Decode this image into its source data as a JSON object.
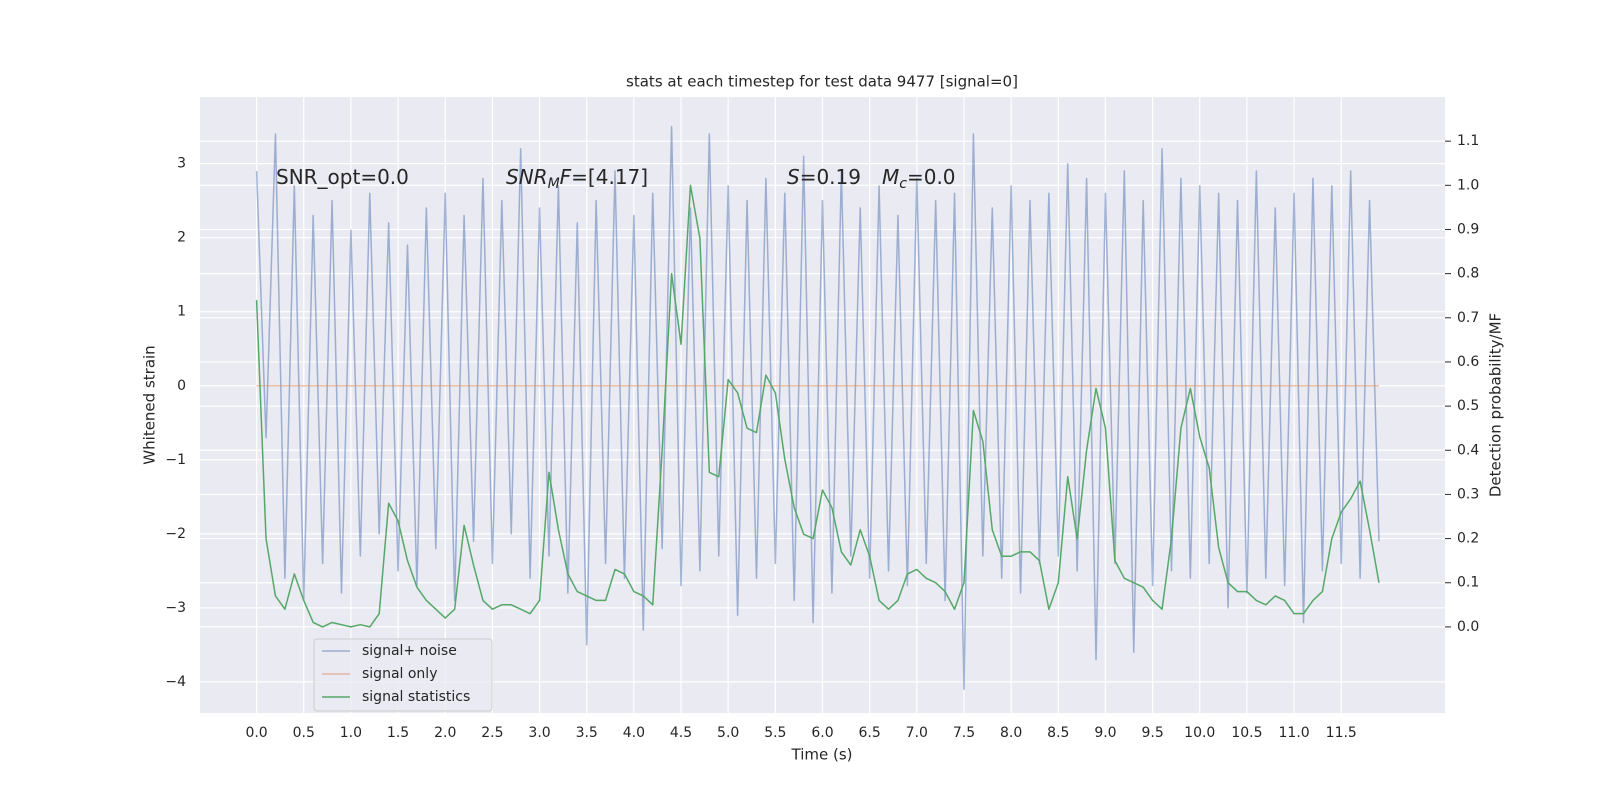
{
  "chart_data": {
    "type": "line",
    "title": "stats at each timestep for test data 9477 [signal=0]",
    "xlabel": "Time (s)",
    "ylabel": "Whitened strain",
    "y2label": "Detection probability/MF",
    "annotations": [
      [
        {
          "text": "SNR_opt=0.0"
        }
      ],
      [
        {
          "text": "SNR",
          "style": "italic"
        },
        {
          "text": "M",
          "style": "sub"
        },
        {
          "text": "F",
          "style": "italic"
        },
        {
          "text": "=[4.17]"
        }
      ],
      [
        {
          "text": "S",
          "style": "italic"
        },
        {
          "text": "=0.19"
        }
      ],
      [
        {
          "text": "M",
          "style": "italic"
        },
        {
          "text": "c",
          "style": "sub"
        },
        {
          "text": "=0.0"
        }
      ]
    ],
    "x": [
      0,
      0.1,
      0.2,
      0.3,
      0.4,
      0.5,
      0.6,
      0.7,
      0.8,
      0.9,
      1,
      1.1,
      1.2,
      1.3,
      1.4,
      1.5,
      1.6,
      1.7,
      1.8,
      1.9,
      2,
      2.1,
      2.2,
      2.3,
      2.4,
      2.5,
      2.6,
      2.7,
      2.8,
      2.9,
      3,
      3.1,
      3.2,
      3.3,
      3.4,
      3.5,
      3.6,
      3.7,
      3.8,
      3.9,
      4,
      4.1,
      4.2,
      4.3,
      4.4,
      4.5,
      4.6,
      4.7,
      4.8,
      4.9,
      5,
      5.1,
      5.2,
      5.3,
      5.4,
      5.5,
      5.6,
      5.7,
      5.8,
      5.9,
      6,
      6.1,
      6.2,
      6.3,
      6.4,
      6.5,
      6.6,
      6.7,
      6.8,
      6.9,
      7,
      7.1,
      7.2,
      7.3,
      7.4,
      7.5,
      7.6,
      7.7,
      7.8,
      7.9,
      8,
      8.1,
      8.2,
      8.3,
      8.4,
      8.5,
      8.6,
      8.7,
      8.8,
      8.9,
      9,
      9.1,
      9.2,
      9.3,
      9.4,
      9.5,
      9.6,
      9.7,
      9.8,
      9.9,
      10,
      10.1,
      10.2,
      10.3,
      10.4,
      10.5,
      10.6,
      10.7,
      10.8,
      10.9,
      11,
      11.1,
      11.2,
      11.3,
      11.4,
      11.5,
      11.6,
      11.7,
      11.8,
      11.9
    ],
    "series": [
      {
        "name": "signal+ noise",
        "color": "#4c72b0",
        "opacity": 0.5,
        "values": [
          2.9,
          -0.7,
          3.4,
          -2.6,
          2.7,
          -2.9,
          2.3,
          -2.4,
          2.5,
          -2.8,
          2.1,
          -2.3,
          2.6,
          -2.0,
          2.2,
          -2.5,
          1.9,
          -2.7,
          2.4,
          -2.2,
          2.6,
          -2.9,
          2.3,
          -2.1,
          2.8,
          -2.4,
          2.5,
          -2.0,
          3.2,
          -2.6,
          2.4,
          -2.3,
          2.7,
          -2.8,
          2.2,
          -3.5,
          2.5,
          -2.4,
          2.9,
          -2.6,
          2.3,
          -3.3,
          2.6,
          -2.2,
          3.5,
          -2.7,
          2.4,
          -2.5,
          3.4,
          -2.3,
          2.7,
          -3.1,
          2.5,
          -2.6,
          2.8,
          -2.4,
          2.6,
          -2.9,
          3.1,
          -3.2,
          2.5,
          -2.8,
          2.9,
          -2.3,
          2.4,
          -2.6,
          2.7,
          -2.5,
          2.3,
          -2.7,
          2.8,
          -2.4,
          2.5,
          -2.9,
          2.6,
          -4.1,
          3.4,
          -2.3,
          2.4,
          -2.6,
          2.7,
          -2.8,
          2.5,
          -2.4,
          2.6,
          -2.3,
          3.0,
          -2.5,
          2.8,
          -3.7,
          2.6,
          -2.4,
          2.9,
          -3.6,
          2.5,
          -2.7,
          3.2,
          -2.5,
          2.8,
          -2.6,
          2.7,
          -2.4,
          2.6,
          -3.0,
          2.5,
          -2.8,
          2.9,
          -2.6,
          2.4,
          -2.7,
          2.6,
          -3.2,
          2.8,
          -2.5,
          2.7,
          -2.4,
          2.9,
          -2.6,
          2.5,
          -2.1
        ]
      },
      {
        "name": "signal only",
        "color": "#dd8452",
        "opacity": 0.5,
        "values": [
          0,
          0,
          0,
          0,
          0,
          0,
          0,
          0,
          0,
          0,
          0,
          0,
          0,
          0,
          0,
          0,
          0,
          0,
          0,
          0,
          0,
          0,
          0,
          0,
          0,
          0,
          0,
          0,
          0,
          0,
          0,
          0,
          0,
          0,
          0,
          0,
          0,
          0,
          0,
          0,
          0,
          0,
          0,
          0,
          0,
          0,
          0,
          0,
          0,
          0,
          0,
          0,
          0,
          0,
          0,
          0,
          0,
          0,
          0,
          0,
          0,
          0,
          0,
          0,
          0,
          0,
          0,
          0,
          0,
          0,
          0,
          0,
          0,
          0,
          0,
          0,
          0,
          0,
          0,
          0,
          0,
          0,
          0,
          0,
          0,
          0,
          0,
          0,
          0,
          0,
          0,
          0,
          0,
          0,
          0,
          0,
          0,
          0,
          0,
          0,
          0,
          0,
          0,
          0,
          0,
          0,
          0,
          0,
          0,
          0,
          0,
          0,
          0,
          0,
          0,
          0,
          0,
          0,
          0,
          0
        ]
      },
      {
        "name": "signal statistics",
        "color": "#55a868",
        "opacity": 1,
        "axis": "y2",
        "values": [
          0.74,
          0.2,
          0.07,
          0.04,
          0.12,
          0.06,
          0.01,
          0.0,
          0.01,
          0.005,
          0.0,
          0.005,
          0.0,
          0.03,
          0.28,
          0.24,
          0.15,
          0.09,
          0.06,
          0.04,
          0.02,
          0.04,
          0.23,
          0.14,
          0.06,
          0.04,
          0.05,
          0.05,
          0.04,
          0.03,
          0.06,
          0.35,
          0.22,
          0.12,
          0.08,
          0.07,
          0.06,
          0.06,
          0.13,
          0.12,
          0.08,
          0.07,
          0.05,
          0.4,
          0.8,
          0.64,
          1.0,
          0.88,
          0.35,
          0.34,
          0.56,
          0.53,
          0.45,
          0.44,
          0.57,
          0.53,
          0.38,
          0.27,
          0.21,
          0.2,
          0.31,
          0.27,
          0.17,
          0.14,
          0.22,
          0.16,
          0.06,
          0.04,
          0.06,
          0.12,
          0.13,
          0.11,
          0.1,
          0.08,
          0.04,
          0.1,
          0.49,
          0.42,
          0.22,
          0.16,
          0.16,
          0.17,
          0.17,
          0.15,
          0.04,
          0.1,
          0.34,
          0.2,
          0.4,
          0.54,
          0.45,
          0.15,
          0.11,
          0.1,
          0.09,
          0.06,
          0.04,
          0.2,
          0.45,
          0.54,
          0.43,
          0.36,
          0.18,
          0.1,
          0.08,
          0.08,
          0.06,
          0.05,
          0.07,
          0.06,
          0.03,
          0.03,
          0.06,
          0.08,
          0.2,
          0.26,
          0.29,
          0.33,
          0.22,
          0.1
        ]
      }
    ],
    "xlim": [
      -0.6,
      12.6
    ],
    "xticks": [
      {
        "value": 0,
        "label": "0.0"
      },
      0.5,
      {
        "value": 1,
        "label": "1.0"
      },
      1.5,
      {
        "value": 2,
        "label": "2.0"
      },
      2.5,
      {
        "value": 3,
        "label": "3.0"
      },
      3.5,
      {
        "value": 4,
        "label": "4.0"
      },
      4.5,
      {
        "value": 5,
        "label": "5.0"
      },
      5.5,
      {
        "value": 6,
        "label": "6.0"
      },
      6.5,
      {
        "value": 7,
        "label": "7.0"
      },
      7.5,
      {
        "value": 8,
        "label": "8.0"
      },
      8.5,
      {
        "value": 9,
        "label": "9.0"
      },
      9.5,
      {
        "value": 10,
        "label": "10.0"
      },
      10.5,
      {
        "value": 11,
        "label": "11.0"
      },
      11.5
    ],
    "ylim": [
      -4.42,
      3.9
    ],
    "yticks": [
      {
        "value": -4,
        "label": "−4"
      },
      {
        "value": -3,
        "label": "−3"
      },
      {
        "value": -2,
        "label": "−2"
      },
      {
        "value": -1,
        "label": "−1"
      },
      0,
      1,
      2,
      3
    ],
    "y2lim": [
      -0.195,
      1.2
    ],
    "y2ticks": [
      {
        "value": 0,
        "label": "0.0"
      },
      0.1,
      0.2,
      0.3,
      0.4,
      0.5,
      0.6,
      0.7,
      0.8,
      0.9,
      {
        "value": 1,
        "label": "1.0"
      },
      1.1
    ],
    "grid": true,
    "legend": "lower left"
  }
}
